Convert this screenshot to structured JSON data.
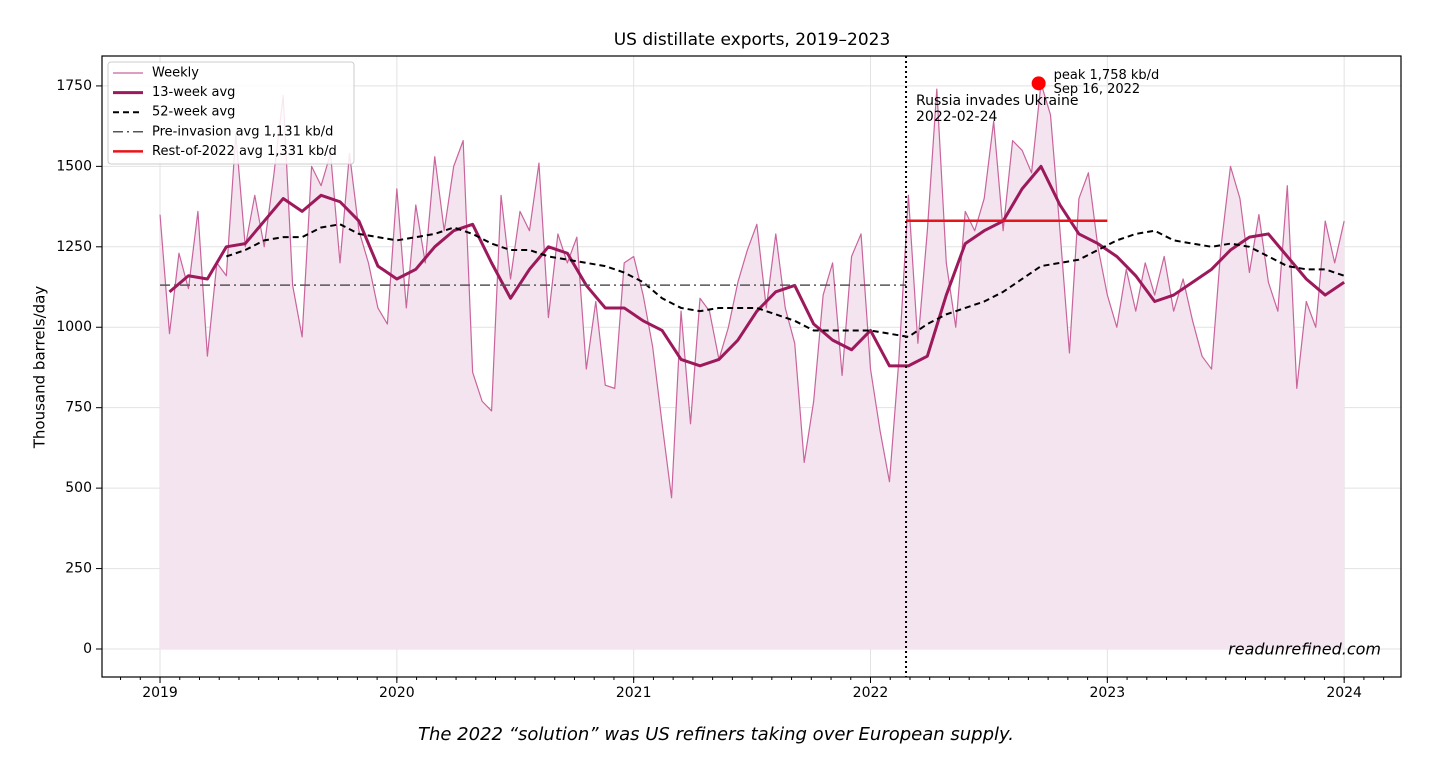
{
  "chart_data": {
    "type": "line",
    "title": "US distillate exports, 2019–2023",
    "y_label": "Thousand barrels/day",
    "caption": "The 2022 “solution” was US refiners taking over European supply.",
    "watermark": "readunrefined.com",
    "xlim": [
      2018.755,
      2024.24
    ],
    "ylim": [
      -87,
      1843
    ],
    "xticks": [
      2019,
      2020,
      2021,
      2022,
      2023,
      2024
    ],
    "yticks": [
      0,
      250,
      500,
      750,
      1000,
      1250,
      1500,
      1750
    ],
    "grid": true,
    "legend": "upper left",
    "series": [
      {
        "name": "Weekly",
        "color": "#c9649c",
        "width": 1.2,
        "style": "solid",
        "fill": "#f4e4ef",
        "x": [
          2019,
          2019.04,
          2019.08,
          2019.12,
          2019.16,
          2019.2,
          2019.24,
          2019.28,
          2019.32,
          2019.36,
          2019.4,
          2019.44,
          2019.48,
          2019.52,
          2019.56,
          2019.6,
          2019.64,
          2019.68,
          2019.72,
          2019.76,
          2019.8,
          2019.84,
          2019.88,
          2019.92,
          2019.96,
          2020,
          2020.04,
          2020.08,
          2020.12,
          2020.16,
          2020.2,
          2020.24,
          2020.28,
          2020.32,
          2020.36,
          2020.4,
          2020.44,
          2020.48,
          2020.52,
          2020.56,
          2020.6,
          2020.64,
          2020.68,
          2020.72,
          2020.76,
          2020.8,
          2020.84,
          2020.88,
          2020.92,
          2020.96,
          2021,
          2021.04,
          2021.08,
          2021.12,
          2021.16,
          2021.2,
          2021.24,
          2021.28,
          2021.32,
          2021.36,
          2021.4,
          2021.44,
          2021.48,
          2021.52,
          2021.56,
          2021.6,
          2021.64,
          2021.68,
          2021.72,
          2021.76,
          2021.8,
          2021.84,
          2021.88,
          2021.92,
          2021.96,
          2022,
          2022.04,
          2022.08,
          2022.12,
          2022.16,
          2022.2,
          2022.24,
          2022.28,
          2022.32,
          2022.36,
          2022.4,
          2022.44,
          2022.48,
          2022.52,
          2022.56,
          2022.6,
          2022.64,
          2022.68,
          2022.72,
          2022.76,
          2022.8,
          2022.84,
          2022.88,
          2022.92,
          2022.96,
          2023,
          2023.04,
          2023.08,
          2023.12,
          2023.16,
          2023.2,
          2023.24,
          2023.28,
          2023.32,
          2023.36,
          2023.4,
          2023.44,
          2023.48,
          2023.52,
          2023.56,
          2023.6,
          2023.64,
          2023.68,
          2023.72,
          2023.76,
          2023.8,
          2023.84,
          2023.88,
          2023.92,
          2023.96,
          2024
        ],
        "values": [
          1350,
          980,
          1230,
          1120,
          1360,
          910,
          1200,
          1160,
          1600,
          1250,
          1410,
          1250,
          1470,
          1720,
          1130,
          970,
          1500,
          1440,
          1540,
          1200,
          1540,
          1300,
          1200,
          1060,
          1010,
          1430,
          1060,
          1380,
          1200,
          1530,
          1300,
          1500,
          1580,
          860,
          770,
          740,
          1410,
          1150,
          1360,
          1300,
          1510,
          1030,
          1290,
          1200,
          1280,
          870,
          1080,
          820,
          810,
          1200,
          1220,
          1100,
          940,
          700,
          470,
          1050,
          700,
          1090,
          1050,
          900,
          1000,
          1140,
          1240,
          1320,
          1060,
          1290,
          1060,
          950,
          580,
          770,
          1100,
          1200,
          850,
          1220,
          1290,
          870,
          680,
          520,
          900,
          1410,
          950,
          1300,
          1740,
          1200,
          1000,
          1360,
          1300,
          1400,
          1640,
          1300,
          1580,
          1550,
          1480,
          1758,
          1660,
          1300,
          920,
          1400,
          1480,
          1250,
          1100,
          1000,
          1180,
          1050,
          1200,
          1100,
          1220,
          1050,
          1150,
          1020,
          910,
          870,
          1250,
          1500,
          1400,
          1170,
          1350,
          1140,
          1050,
          1440,
          810,
          1080,
          1000,
          1330,
          1200,
          1330
        ]
      },
      {
        "name": "13-week avg",
        "color": "#9c1a5c",
        "width": 3,
        "style": "solid",
        "x": [
          2019.04,
          2019.12,
          2019.2,
          2019.28,
          2019.36,
          2019.44,
          2019.52,
          2019.6,
          2019.68,
          2019.76,
          2019.84,
          2019.92,
          2020,
          2020.08,
          2020.16,
          2020.24,
          2020.32,
          2020.4,
          2020.48,
          2020.56,
          2020.64,
          2020.72,
          2020.8,
          2020.88,
          2020.96,
          2021.04,
          2021.12,
          2021.2,
          2021.28,
          2021.36,
          2021.44,
          2021.52,
          2021.6,
          2021.68,
          2021.76,
          2021.84,
          2021.92,
          2022,
          2022.08,
          2022.16,
          2022.24,
          2022.32,
          2022.4,
          2022.48,
          2022.56,
          2022.64,
          2022.72,
          2022.8,
          2022.88,
          2022.96,
          2023.04,
          2023.12,
          2023.2,
          2023.28,
          2023.36,
          2023.44,
          2023.52,
          2023.6,
          2023.68,
          2023.76,
          2023.84,
          2023.92,
          2024
        ],
        "values": [
          1110,
          1160,
          1150,
          1250,
          1260,
          1330,
          1400,
          1360,
          1410,
          1390,
          1330,
          1190,
          1150,
          1180,
          1250,
          1300,
          1320,
          1200,
          1090,
          1180,
          1250,
          1230,
          1130,
          1060,
          1060,
          1020,
          990,
          900,
          880,
          900,
          960,
          1050,
          1110,
          1130,
          1010,
          960,
          930,
          990,
          880,
          880,
          910,
          1100,
          1260,
          1300,
          1330,
          1430,
          1500,
          1380,
          1290,
          1260,
          1220,
          1160,
          1080,
          1100,
          1140,
          1180,
          1240,
          1280,
          1290,
          1220,
          1150,
          1100,
          1140
        ]
      },
      {
        "name": "52-week avg",
        "color": "#000000",
        "width": 2,
        "style": "dashed",
        "x": [
          2019.28,
          2019.36,
          2019.44,
          2019.52,
          2019.6,
          2019.68,
          2019.76,
          2019.84,
          2019.92,
          2020,
          2020.08,
          2020.16,
          2020.24,
          2020.32,
          2020.4,
          2020.48,
          2020.56,
          2020.64,
          2020.72,
          2020.8,
          2020.88,
          2020.96,
          2021.04,
          2021.12,
          2021.2,
          2021.28,
          2021.36,
          2021.44,
          2021.52,
          2021.6,
          2021.68,
          2021.76,
          2021.84,
          2021.92,
          2022,
          2022.08,
          2022.16,
          2022.24,
          2022.32,
          2022.4,
          2022.48,
          2022.56,
          2022.64,
          2022.72,
          2022.8,
          2022.88,
          2022.96,
          2023.04,
          2023.12,
          2023.2,
          2023.28,
          2023.36,
          2023.44,
          2023.52,
          2023.6,
          2023.68,
          2023.76,
          2023.84,
          2023.92,
          2024
        ],
        "values": [
          1220,
          1240,
          1270,
          1280,
          1280,
          1310,
          1320,
          1290,
          1280,
          1270,
          1280,
          1290,
          1310,
          1290,
          1260,
          1240,
          1240,
          1220,
          1210,
          1200,
          1190,
          1170,
          1140,
          1090,
          1060,
          1050,
          1060,
          1060,
          1060,
          1040,
          1020,
          990,
          990,
          990,
          990,
          980,
          970,
          1010,
          1040,
          1060,
          1080,
          1110,
          1150,
          1190,
          1200,
          1210,
          1240,
          1270,
          1290,
          1300,
          1270,
          1260,
          1250,
          1260,
          1250,
          1220,
          1190,
          1180,
          1180,
          1160
        ]
      }
    ],
    "reference_lines": [
      {
        "name": "Pre-invasion avg  1,131 kb/d",
        "value": 1131,
        "x": [
          2019,
          2022.15
        ],
        "color": "#555555",
        "style": "dashdot"
      },
      {
        "name": "Rest-of-2022 avg  1,331 kb/d",
        "value": 1331,
        "x": [
          2022.15,
          2023
        ],
        "color": "#e8141c",
        "style": "solid"
      }
    ],
    "event": {
      "x": 2022.15,
      "text": [
        "Russia invades Ukraine",
        "2022-02-24"
      ]
    },
    "peak": {
      "x": 2022.71,
      "y": 1758,
      "color": "#ff0000",
      "text": [
        "peak 1,758 kb/d",
        "Sep 16, 2022"
      ]
    }
  }
}
